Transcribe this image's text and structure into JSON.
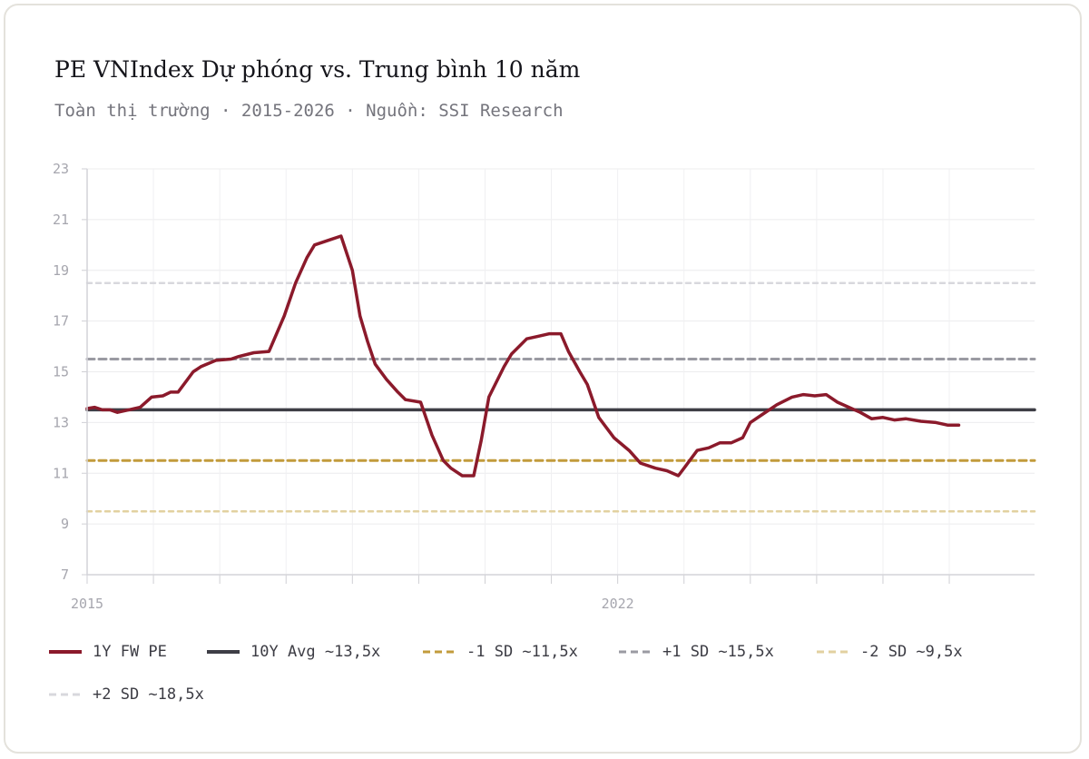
{
  "header": {
    "title": "PE VNIndex Dự phóng vs. Trung bình 10 năm",
    "subtitle": "Toàn thị trường · 2015-2026 · Nguồn: SSI Research"
  },
  "legend": [
    {
      "label": "1Y FW PE",
      "color": "#8b1a2b",
      "style": "solid"
    },
    {
      "label": "10Y Avg ~13,5x",
      "color": "#3e3e46",
      "style": "solid"
    },
    {
      "label": "-1 SD ~11,5x",
      "color": "#c29b3c",
      "style": "dashed"
    },
    {
      "label": "+1 SD ~15,5x",
      "color": "#9a9aa2",
      "style": "dashed"
    },
    {
      "label": "-2 SD ~9,5x",
      "color": "#e2d1a0",
      "style": "dashed"
    },
    {
      "label": "+2 SD ~18,5x",
      "color": "#d8d8dd",
      "style": "dashed"
    }
  ],
  "chart_data": {
    "type": "line",
    "title": "PE VNIndex Dự phóng vs. Trung bình 10 năm",
    "xlabel": "",
    "ylabel": "",
    "xlim": [
      2015,
      2027.5
    ],
    "ylim": [
      7,
      23
    ],
    "yticks": [
      "7",
      "9",
      "11",
      "13",
      "15",
      "17",
      "19",
      "21",
      "23"
    ],
    "xticks": [
      {
        "x": 2015,
        "label": "2015"
      },
      {
        "x": 2022,
        "label": "2022"
      }
    ],
    "grid": true,
    "legend_position": "bottom",
    "series": [
      {
        "name": "1Y FW PE",
        "color": "#8b1a2b",
        "x": [
          2015.0,
          2015.1,
          2015.2,
          2015.3,
          2015.4,
          2015.55,
          2015.7,
          2015.85,
          2016.0,
          2016.1,
          2016.2,
          2016.3,
          2016.4,
          2016.5,
          2016.7,
          2016.9,
          2017.0,
          2017.2,
          2017.4,
          2017.6,
          2017.75,
          2017.9,
          2018.0,
          2018.2,
          2018.35,
          2018.5,
          2018.6,
          2018.7,
          2018.8,
          2018.95,
          2019.1,
          2019.2,
          2019.4,
          2019.55,
          2019.7,
          2019.8,
          2019.95,
          2020.1,
          2020.2,
          2020.3,
          2020.5,
          2020.6,
          2020.8,
          2020.95,
          2021.1,
          2021.25,
          2021.35,
          2021.5,
          2021.6,
          2021.75,
          2021.95,
          2022.15,
          2022.3,
          2022.5,
          2022.65,
          2022.8,
          2022.9,
          2023.05,
          2023.2,
          2023.35,
          2023.5,
          2023.65,
          2023.75,
          2023.9,
          2024.1,
          2024.3,
          2024.45,
          2024.6,
          2024.75,
          2024.9,
          2025.05,
          2025.2,
          2025.35,
          2025.5,
          2025.65,
          2025.8,
          2026.0,
          2026.2,
          2026.35,
          2026.5
        ],
        "values": [
          13.55,
          13.6,
          13.5,
          13.5,
          13.4,
          13.5,
          13.6,
          14.0,
          14.05,
          14.2,
          14.2,
          14.6,
          15.0,
          15.2,
          15.45,
          15.5,
          15.6,
          15.75,
          15.8,
          17.2,
          18.5,
          19.5,
          20.0,
          20.2,
          20.35,
          19.0,
          17.2,
          16.2,
          15.3,
          14.7,
          14.2,
          13.9,
          13.8,
          12.5,
          11.5,
          11.2,
          10.9,
          10.9,
          12.3,
          14.0,
          15.2,
          15.7,
          16.3,
          16.4,
          16.5,
          16.5,
          15.8,
          15.0,
          14.5,
          13.2,
          12.4,
          11.9,
          11.4,
          11.2,
          11.1,
          10.9,
          11.3,
          11.9,
          12.0,
          12.2,
          12.2,
          12.4,
          13.0,
          13.3,
          13.7,
          14.0,
          14.1,
          14.05,
          14.1,
          13.8,
          13.6,
          13.4,
          13.15,
          13.2,
          13.1,
          13.15,
          13.05,
          13.0,
          12.9,
          12.9
        ]
      },
      {
        "name": "10Y Avg ~13,5x",
        "color": "#3e3e46",
        "x": [
          2015,
          2027.5
        ],
        "values": [
          13.5,
          13.5
        ]
      },
      {
        "name": "-1 SD ~11,5x",
        "color": "#c29b3c",
        "x": [
          2015,
          2027.5
        ],
        "values": [
          11.5,
          11.5
        ]
      },
      {
        "name": "+1 SD ~15,5x",
        "color": "#9a9aa2",
        "x": [
          2015,
          2027.5
        ],
        "values": [
          15.5,
          15.5
        ]
      },
      {
        "name": "-2 SD ~9,5x",
        "color": "#e2d1a0",
        "x": [
          2015,
          2027.5
        ],
        "values": [
          9.5,
          9.5
        ]
      },
      {
        "name": "+2 SD ~18,5x",
        "color": "#d8d8dd",
        "x": [
          2015,
          2027.5
        ],
        "values": [
          18.5,
          18.5
        ]
      }
    ]
  }
}
